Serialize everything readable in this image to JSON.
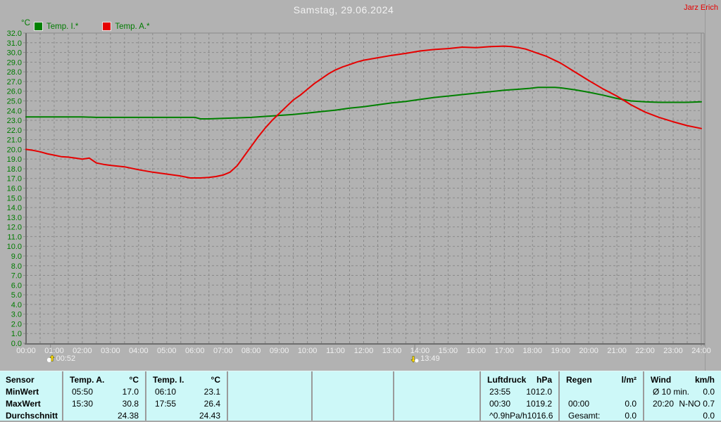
{
  "header": {
    "title": "Samstag, 29.06.2024",
    "author": "Jarz Erich"
  },
  "legend": {
    "items": [
      {
        "label": "Temp. I.*",
        "color": "#008000"
      },
      {
        "label": "Temp. A.*",
        "color": "#e60000"
      }
    ]
  },
  "chart_data": {
    "type": "line",
    "title": "Samstag, 29.06.2024",
    "y_unit": "°C",
    "ylim": [
      0,
      32
    ],
    "y_tick_step": 1.0,
    "x_hours_range": [
      0,
      24
    ],
    "x_grid_step_hours": 0.5,
    "grid": "dashed gray, horizontal every 1.0 °C, vertical every 30 min",
    "legend_position": "top-left",
    "x_tick_labels": [
      "00:00",
      "01:00",
      "02:00",
      "03:00",
      "04:00",
      "05:00",
      "06:00",
      "07:00",
      "08:00",
      "09:00",
      "10:00",
      "11:00",
      "12:00",
      "13:00",
      "14:00",
      "15:00",
      "16:00",
      "17:00",
      "18:00",
      "19:00",
      "20:00",
      "21:00",
      "22:00",
      "23:00",
      "24:00"
    ],
    "y_tick_labels": [
      "0.0",
      "1.0",
      "2.0",
      "3.0",
      "4.0",
      "5.0",
      "6.0",
      "7.0",
      "8.0",
      "9.0",
      "10.0",
      "11.0",
      "12.0",
      "13.0",
      "14.0",
      "15.0",
      "16.0",
      "17.0",
      "18.0",
      "19.0",
      "20.0",
      "21.0",
      "22.0",
      "23.0",
      "24.0",
      "25.0",
      "26.0",
      "27.0",
      "28.0",
      "29.0",
      "30.0",
      "31.0",
      "32.0"
    ],
    "series": [
      {
        "name": "Temp. I.*",
        "color": "#008000",
        "points": [
          [
            0,
            23.35
          ],
          [
            0.5,
            23.35
          ],
          [
            1,
            23.35
          ],
          [
            1.5,
            23.35
          ],
          [
            2,
            23.35
          ],
          [
            2.5,
            23.3
          ],
          [
            3,
            23.3
          ],
          [
            3.5,
            23.3
          ],
          [
            4,
            23.3
          ],
          [
            4.5,
            23.3
          ],
          [
            5,
            23.3
          ],
          [
            5.5,
            23.3
          ],
          [
            6,
            23.3
          ],
          [
            6.2,
            23.15
          ],
          [
            6.5,
            23.15
          ],
          [
            7,
            23.2
          ],
          [
            7.5,
            23.25
          ],
          [
            8,
            23.3
          ],
          [
            8.5,
            23.4
          ],
          [
            9,
            23.5
          ],
          [
            9.5,
            23.6
          ],
          [
            10,
            23.75
          ],
          [
            10.5,
            23.9
          ],
          [
            11,
            24.05
          ],
          [
            11.5,
            24.25
          ],
          [
            12,
            24.4
          ],
          [
            12.5,
            24.6
          ],
          [
            13,
            24.8
          ],
          [
            13.5,
            24.95
          ],
          [
            14,
            25.15
          ],
          [
            14.5,
            25.35
          ],
          [
            15,
            25.5
          ],
          [
            15.5,
            25.65
          ],
          [
            16,
            25.8
          ],
          [
            16.5,
            25.95
          ],
          [
            17,
            26.1
          ],
          [
            17.5,
            26.2
          ],
          [
            17.9,
            26.3
          ],
          [
            18.2,
            26.4
          ],
          [
            18.8,
            26.4
          ],
          [
            19,
            26.35
          ],
          [
            19.5,
            26.15
          ],
          [
            20,
            25.9
          ],
          [
            20.5,
            25.6
          ],
          [
            21,
            25.25
          ],
          [
            21.5,
            25.0
          ],
          [
            22,
            24.9
          ],
          [
            22.5,
            24.85
          ],
          [
            23,
            24.85
          ],
          [
            23.5,
            24.85
          ],
          [
            24,
            24.9
          ]
        ]
      },
      {
        "name": "Temp. A.*",
        "color": "#e60000",
        "points": [
          [
            0,
            20.0
          ],
          [
            0.25,
            19.9
          ],
          [
            0.5,
            19.75
          ],
          [
            0.75,
            19.55
          ],
          [
            1,
            19.4
          ],
          [
            1.25,
            19.25
          ],
          [
            1.5,
            19.2
          ],
          [
            1.75,
            19.1
          ],
          [
            2,
            19.0
          ],
          [
            2.25,
            19.1
          ],
          [
            2.5,
            18.6
          ],
          [
            2.75,
            18.45
          ],
          [
            3,
            18.35
          ],
          [
            3.5,
            18.2
          ],
          [
            4,
            17.9
          ],
          [
            4.5,
            17.65
          ],
          [
            5,
            17.45
          ],
          [
            5.5,
            17.25
          ],
          [
            5.83,
            17.05
          ],
          [
            6.2,
            17.05
          ],
          [
            6.5,
            17.1
          ],
          [
            6.75,
            17.2
          ],
          [
            7,
            17.35
          ],
          [
            7.25,
            17.65
          ],
          [
            7.5,
            18.3
          ],
          [
            7.75,
            19.3
          ],
          [
            8,
            20.3
          ],
          [
            8.25,
            21.3
          ],
          [
            8.5,
            22.2
          ],
          [
            8.75,
            23.0
          ],
          [
            9,
            23.7
          ],
          [
            9.25,
            24.4
          ],
          [
            9.5,
            25.1
          ],
          [
            9.75,
            25.6
          ],
          [
            10,
            26.2
          ],
          [
            10.25,
            26.8
          ],
          [
            10.5,
            27.3
          ],
          [
            10.75,
            27.8
          ],
          [
            11,
            28.2
          ],
          [
            11.25,
            28.5
          ],
          [
            11.5,
            28.75
          ],
          [
            11.75,
            29.0
          ],
          [
            12,
            29.2
          ],
          [
            12.5,
            29.45
          ],
          [
            13,
            29.7
          ],
          [
            13.5,
            29.9
          ],
          [
            14,
            30.15
          ],
          [
            14.5,
            30.3
          ],
          [
            15,
            30.4
          ],
          [
            15.5,
            30.55
          ],
          [
            16,
            30.5
          ],
          [
            16.5,
            30.6
          ],
          [
            17,
            30.65
          ],
          [
            17.25,
            30.6
          ],
          [
            17.5,
            30.5
          ],
          [
            17.75,
            30.35
          ],
          [
            18,
            30.1
          ],
          [
            18.5,
            29.6
          ],
          [
            19,
            28.9
          ],
          [
            19.5,
            28.0
          ],
          [
            20,
            27.1
          ],
          [
            20.5,
            26.25
          ],
          [
            21,
            25.5
          ],
          [
            21.5,
            24.6
          ],
          [
            22,
            23.85
          ],
          [
            22.5,
            23.3
          ],
          [
            23,
            22.85
          ],
          [
            23.5,
            22.45
          ],
          [
            24,
            22.15
          ]
        ]
      }
    ]
  },
  "markers": [
    {
      "label": "00:52",
      "hours": 0.867,
      "icon": "moonrise-icon"
    },
    {
      "label": "13:49",
      "hours": 13.817,
      "icon": "moonset-icon"
    }
  ],
  "table": {
    "row_labels": [
      "Sensor",
      "MinWert",
      "MaxWert",
      "Durchschnitt"
    ],
    "columns": [
      {
        "header": "Temp. A.",
        "unit": "°C",
        "rows": [
          [
            "05:50",
            "17.0"
          ],
          [
            "15:30",
            "30.8"
          ],
          [
            "",
            "24.38"
          ]
        ]
      },
      {
        "header": "Temp. I.",
        "unit": "°C",
        "rows": [
          [
            "06:10",
            "23.1"
          ],
          [
            "17:55",
            "26.4"
          ],
          [
            "",
            "24.43"
          ]
        ]
      },
      {
        "header": "",
        "unit": "",
        "rows": [
          [
            "",
            ""
          ],
          [
            "",
            ""
          ],
          [
            "",
            ""
          ]
        ]
      },
      {
        "header": "",
        "unit": "",
        "rows": [
          [
            "",
            ""
          ],
          [
            "",
            ""
          ],
          [
            "",
            ""
          ]
        ]
      },
      {
        "header": "",
        "unit": "",
        "rows": [
          [
            "",
            ""
          ],
          [
            "",
            ""
          ],
          [
            "",
            ""
          ]
        ]
      },
      {
        "header": "Luftdruck",
        "unit": "hPa",
        "rows": [
          [
            "23:55",
            "1012.0"
          ],
          [
            "00:30",
            "1019.2"
          ],
          [
            "^0.9hPa/h",
            "1016.6"
          ]
        ]
      },
      {
        "header": "Regen",
        "unit": "l/m²",
        "rows": [
          [
            "",
            ""
          ],
          [
            "00:00",
            "0.0"
          ],
          [
            "Gesamt:",
            "0.0"
          ]
        ]
      },
      {
        "header": "Wind",
        "unit": "km/h",
        "rows": [
          [
            "Ø 10 min.",
            "0.0"
          ],
          [
            "20:20",
            "N-NO 0.7"
          ],
          [
            "",
            "0.0"
          ]
        ]
      }
    ]
  }
}
